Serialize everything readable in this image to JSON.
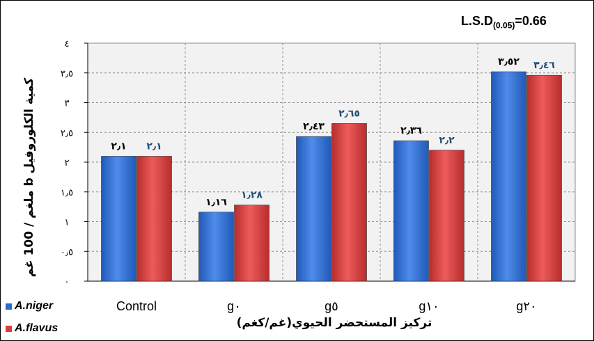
{
  "lsd": {
    "label": "L.S.D",
    "subscript": "(0.05)",
    "value": "=0.66"
  },
  "chart_data": {
    "type": "bar",
    "xlabel": "تركيز المستحضر الحيوي(غم/كغم)",
    "ylabel": "كمية الكلوروفيل b ملغم / 100 غم",
    "ylim": [
      0,
      4
    ],
    "yticks": [
      0,
      0.5,
      1,
      1.5,
      2,
      2.5,
      3,
      3.5,
      4
    ],
    "ytick_labels": [
      "٠",
      "٠٫٥",
      "١",
      "١٫٥",
      "٢",
      "٢٫٥",
      "٣",
      "٣٫٥",
      "٤"
    ],
    "grid": true,
    "categories": [
      "Control",
      "g٠",
      "g٥",
      "g١٠",
      "g٢٠"
    ],
    "series": [
      {
        "name": "A.niger",
        "color": "#2E6BCE",
        "values": [
          2.1,
          1.16,
          2.43,
          2.36,
          3.52
        ],
        "labels": [
          "٢٫١",
          "١٫١٦",
          "٢٫٤٣",
          "٢٫٣٦",
          "٣٫٥٢"
        ],
        "label_color": "#000000"
      },
      {
        "name": "A.flavus",
        "color": "#D93D3D",
        "values": [
          2.1,
          1.28,
          2.65,
          2.2,
          3.46
        ],
        "labels": [
          "٢٫١",
          "١٫٢٨",
          "٢٫٦٥",
          "٢٫٢",
          "٣٫٤٦"
        ],
        "label_color": "#1F4E79"
      }
    ],
    "legend_position": "bottom-left"
  }
}
